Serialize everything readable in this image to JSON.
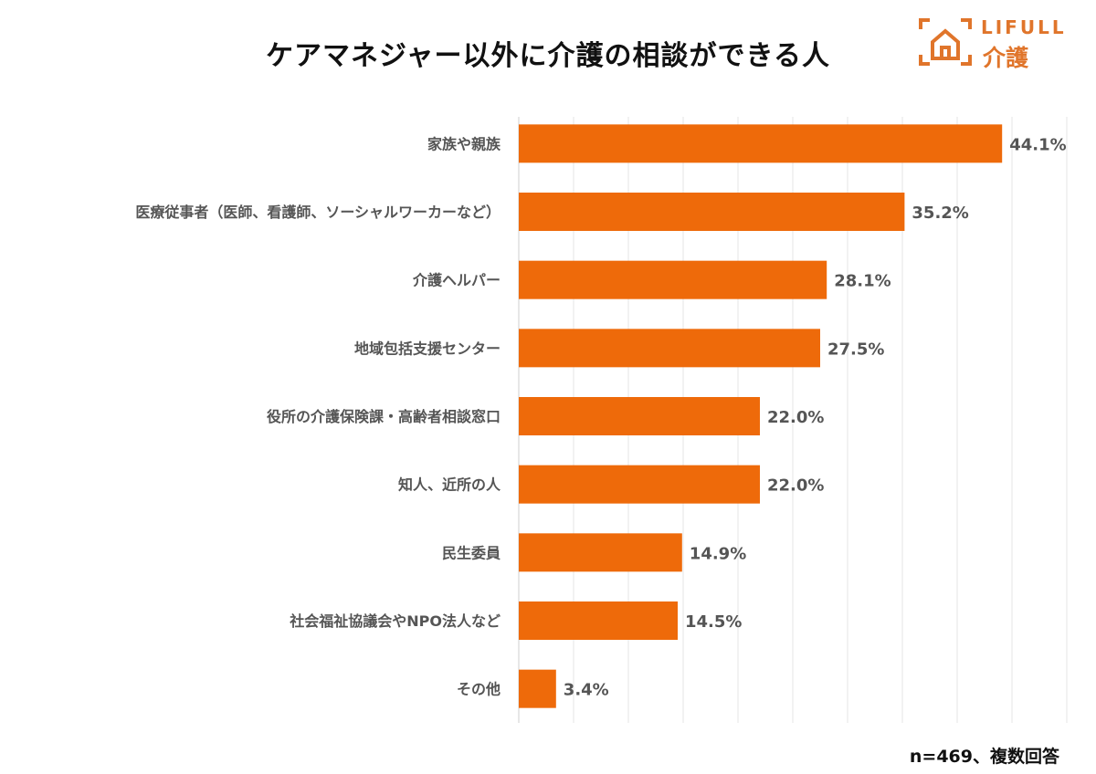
{
  "chart_data": {
    "type": "bar",
    "orientation": "horizontal",
    "title": "ケアマネジャー以外に介護の相談ができる人",
    "categories": [
      "家族や親族",
      "医療従事者（医師、看護師、ソーシャルワーカーなど）",
      "介護ヘルパー",
      "地域包括支援センター",
      "役所の介護保険課・高齢者相談窓口",
      "知人、近所の人",
      "民生委員",
      "社会福祉協議会やNPO法人など",
      "その他"
    ],
    "values": [
      44.1,
      35.2,
      28.1,
      27.5,
      22.0,
      22.0,
      14.9,
      14.5,
      3.4
    ],
    "value_labels": [
      "44.1%",
      "35.2%",
      "28.1%",
      "27.5%",
      "22.0%",
      "22.0%",
      "14.9%",
      "14.5%",
      "3.4%"
    ],
    "xlim": [
      0,
      50
    ],
    "grid_step": 5,
    "grid": true,
    "bar_color": "#EE6A0A",
    "note": "n=469、複数回答"
  },
  "logo": {
    "brand": "LIFULL",
    "sub": "介護",
    "color": "#E0752B"
  }
}
